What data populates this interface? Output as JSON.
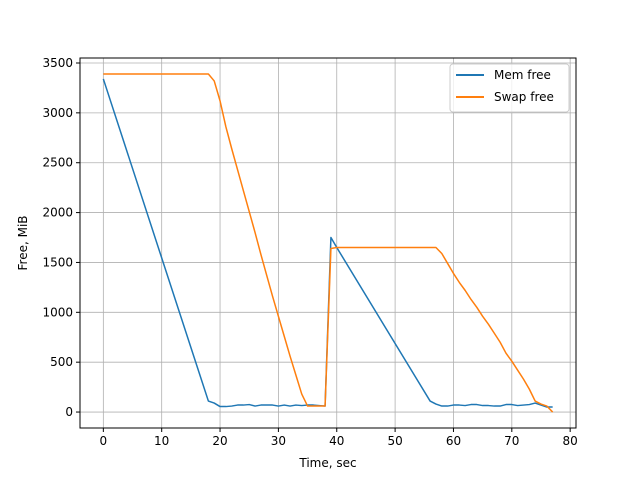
{
  "chart_data": {
    "type": "line",
    "title": "",
    "xlabel": "Time, sec",
    "ylabel": "Free, MiB",
    "xlim": [
      -4,
      81
    ],
    "ylim": [
      -160,
      3550
    ],
    "xticks": [
      0,
      10,
      20,
      30,
      40,
      50,
      60,
      70,
      80
    ],
    "yticks": [
      0,
      500,
      1000,
      1500,
      2000,
      2500,
      3000,
      3500
    ],
    "grid": true,
    "legend_position": "top-right",
    "series": [
      {
        "name": "Mem free",
        "color": "#1f77b4",
        "points": [
          [
            0,
            3340
          ],
          [
            18,
            110
          ],
          [
            19,
            90
          ],
          [
            20,
            55
          ],
          [
            21,
            55
          ],
          [
            22,
            60
          ],
          [
            23,
            70
          ],
          [
            24,
            70
          ],
          [
            25,
            75
          ],
          [
            26,
            60
          ],
          [
            27,
            70
          ],
          [
            28,
            70
          ],
          [
            29,
            70
          ],
          [
            30,
            60
          ],
          [
            31,
            70
          ],
          [
            32,
            60
          ],
          [
            33,
            70
          ],
          [
            34,
            65
          ],
          [
            35,
            70
          ],
          [
            36,
            70
          ],
          [
            37,
            65
          ],
          [
            38,
            60
          ],
          [
            39,
            1750
          ],
          [
            40,
            1650
          ],
          [
            56,
            110
          ],
          [
            57,
            80
          ],
          [
            58,
            60
          ],
          [
            59,
            60
          ],
          [
            60,
            70
          ],
          [
            61,
            70
          ],
          [
            62,
            65
          ],
          [
            63,
            75
          ],
          [
            64,
            75
          ],
          [
            65,
            65
          ],
          [
            66,
            65
          ],
          [
            67,
            60
          ],
          [
            68,
            60
          ],
          [
            69,
            75
          ],
          [
            70,
            75
          ],
          [
            71,
            65
          ],
          [
            72,
            70
          ],
          [
            73,
            75
          ],
          [
            74,
            90
          ],
          [
            75,
            70
          ],
          [
            76,
            50
          ],
          [
            77,
            50
          ]
        ]
      },
      {
        "name": "Swap free",
        "color": "#ff7f0e",
        "points": [
          [
            0,
            3390
          ],
          [
            18,
            3390
          ],
          [
            19,
            3320
          ],
          [
            20,
            3120
          ],
          [
            21,
            2860
          ],
          [
            22,
            2640
          ],
          [
            23,
            2430
          ],
          [
            24,
            2220
          ],
          [
            25,
            2010
          ],
          [
            26,
            1800
          ],
          [
            27,
            1580
          ],
          [
            28,
            1370
          ],
          [
            29,
            1160
          ],
          [
            30,
            960
          ],
          [
            31,
            760
          ],
          [
            32,
            560
          ],
          [
            33,
            370
          ],
          [
            34,
            180
          ],
          [
            35,
            60
          ],
          [
            36,
            60
          ],
          [
            37,
            60
          ],
          [
            38,
            60
          ],
          [
            39,
            1640
          ],
          [
            40,
            1650
          ],
          [
            56,
            1650
          ],
          [
            57,
            1650
          ],
          [
            58,
            1590
          ],
          [
            59,
            1490
          ],
          [
            60,
            1390
          ],
          [
            61,
            1300
          ],
          [
            62,
            1220
          ],
          [
            63,
            1130
          ],
          [
            64,
            1050
          ],
          [
            65,
            960
          ],
          [
            66,
            880
          ],
          [
            67,
            790
          ],
          [
            68,
            700
          ],
          [
            69,
            590
          ],
          [
            70,
            510
          ],
          [
            71,
            420
          ],
          [
            72,
            330
          ],
          [
            73,
            230
          ],
          [
            74,
            110
          ],
          [
            75,
            80
          ],
          [
            76,
            60
          ],
          [
            77,
            0
          ]
        ]
      }
    ]
  }
}
